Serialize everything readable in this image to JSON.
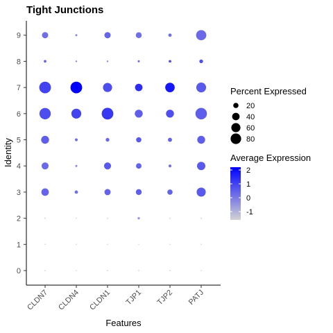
{
  "chart_data": {
    "type": "dotplot",
    "title": "Tight Junctions",
    "xlabel": "Features",
    "ylabel": "Identity",
    "features": [
      "CLDN7",
      "CLDN4",
      "CLDN1",
      "TJP1",
      "TJP2",
      "PATJ"
    ],
    "identities": [
      "0",
      "1",
      "2",
      "3",
      "4",
      "5",
      "6",
      "7",
      "8",
      "9"
    ],
    "points": [
      {
        "feature": "CLDN7",
        "identity": "0",
        "pct": 1,
        "avg": -1.6
      },
      {
        "feature": "CLDN4",
        "identity": "0",
        "pct": 1,
        "avg": -1.6
      },
      {
        "feature": "CLDN1",
        "identity": "0",
        "pct": 1,
        "avg": -1.6
      },
      {
        "feature": "TJP1",
        "identity": "0",
        "pct": 1,
        "avg": -1.6
      },
      {
        "feature": "TJP2",
        "identity": "0",
        "pct": 1,
        "avg": -1.6
      },
      {
        "feature": "PATJ",
        "identity": "0",
        "pct": 1,
        "avg": -1.6
      },
      {
        "feature": "CLDN7",
        "identity": "1",
        "pct": 1,
        "avg": -1.6
      },
      {
        "feature": "CLDN4",
        "identity": "1",
        "pct": 1,
        "avg": -1.6
      },
      {
        "feature": "CLDN1",
        "identity": "1",
        "pct": 1,
        "avg": -1.6
      },
      {
        "feature": "TJP1",
        "identity": "1",
        "pct": 1,
        "avg": -1.6
      },
      {
        "feature": "TJP2",
        "identity": "1",
        "pct": 1,
        "avg": -1.6
      },
      {
        "feature": "PATJ",
        "identity": "1",
        "pct": 1,
        "avg": -1.6
      },
      {
        "feature": "CLDN7",
        "identity": "2",
        "pct": 1,
        "avg": -1.5
      },
      {
        "feature": "CLDN4",
        "identity": "2",
        "pct": 1,
        "avg": -1.6
      },
      {
        "feature": "CLDN1",
        "identity": "2",
        "pct": 1,
        "avg": -1.5
      },
      {
        "feature": "TJP1",
        "identity": "2",
        "pct": 4,
        "avg": -0.5
      },
      {
        "feature": "TJP2",
        "identity": "2",
        "pct": 1,
        "avg": -1.5
      },
      {
        "feature": "PATJ",
        "identity": "2",
        "pct": 1,
        "avg": -1.5
      },
      {
        "feature": "CLDN7",
        "identity": "3",
        "pct": 40,
        "avg": 0.4
      },
      {
        "feature": "CLDN4",
        "identity": "3",
        "pct": 8,
        "avg": 0.2
      },
      {
        "feature": "CLDN1",
        "identity": "3",
        "pct": 28,
        "avg": 0.4
      },
      {
        "feature": "TJP1",
        "identity": "3",
        "pct": 25,
        "avg": 0.5
      },
      {
        "feature": "TJP2",
        "identity": "3",
        "pct": 20,
        "avg": 0.4
      },
      {
        "feature": "PATJ",
        "identity": "3",
        "pct": 60,
        "avg": 0.6
      },
      {
        "feature": "CLDN7",
        "identity": "4",
        "pct": 35,
        "avg": 0.3
      },
      {
        "feature": "CLDN4",
        "identity": "4",
        "pct": 3,
        "avg": -0.2
      },
      {
        "feature": "CLDN1",
        "identity": "4",
        "pct": 35,
        "avg": 0.6
      },
      {
        "feature": "TJP1",
        "identity": "4",
        "pct": 22,
        "avg": 0.4
      },
      {
        "feature": "TJP2",
        "identity": "4",
        "pct": 6,
        "avg": 0.2
      },
      {
        "feature": "PATJ",
        "identity": "4",
        "pct": 50,
        "avg": 0.6
      },
      {
        "feature": "CLDN7",
        "identity": "5",
        "pct": 45,
        "avg": 0.5
      },
      {
        "feature": "CLDN4",
        "identity": "5",
        "pct": 6,
        "avg": 0.2
      },
      {
        "feature": "CLDN1",
        "identity": "5",
        "pct": 10,
        "avg": 0.3
      },
      {
        "feature": "TJP1",
        "identity": "5",
        "pct": 20,
        "avg": 0.6
      },
      {
        "feature": "TJP2",
        "identity": "5",
        "pct": 12,
        "avg": 0.4
      },
      {
        "feature": "PATJ",
        "identity": "5",
        "pct": 45,
        "avg": 0.5
      },
      {
        "feature": "CLDN7",
        "identity": "6",
        "pct": 92,
        "avg": 0.8
      },
      {
        "feature": "CLDN4",
        "identity": "6",
        "pct": 70,
        "avg": 1.0
      },
      {
        "feature": "CLDN1",
        "identity": "6",
        "pct": 98,
        "avg": 1.2
      },
      {
        "feature": "TJP1",
        "identity": "6",
        "pct": 45,
        "avg": 0.5
      },
      {
        "feature": "TJP2",
        "identity": "6",
        "pct": 45,
        "avg": 0.8
      },
      {
        "feature": "PATJ",
        "identity": "6",
        "pct": 95,
        "avg": 0.5
      },
      {
        "feature": "CLDN7",
        "identity": "7",
        "pct": 98,
        "avg": 1.0
      },
      {
        "feature": "CLDN4",
        "identity": "7",
        "pct": 98,
        "avg": 2.2
      },
      {
        "feature": "CLDN1",
        "identity": "7",
        "pct": 60,
        "avg": 0.8
      },
      {
        "feature": "TJP1",
        "identity": "7",
        "pct": 40,
        "avg": 1.4
      },
      {
        "feature": "TJP2",
        "identity": "7",
        "pct": 65,
        "avg": 1.8
      },
      {
        "feature": "PATJ",
        "identity": "7",
        "pct": 70,
        "avg": 0.6
      },
      {
        "feature": "CLDN7",
        "identity": "8",
        "pct": 5,
        "avg": 0.4
      },
      {
        "feature": "CLDN4",
        "identity": "8",
        "pct": 2,
        "avg": -0.2
      },
      {
        "feature": "CLDN1",
        "identity": "8",
        "pct": 2,
        "avg": -0.2
      },
      {
        "feature": "TJP1",
        "identity": "8",
        "pct": 3,
        "avg": 0.3
      },
      {
        "feature": "TJP2",
        "identity": "8",
        "pct": 5,
        "avg": 0.8
      },
      {
        "feature": "PATJ",
        "identity": "8",
        "pct": 10,
        "avg": 0.8
      },
      {
        "feature": "CLDN7",
        "identity": "9",
        "pct": 28,
        "avg": 0.2
      },
      {
        "feature": "CLDN4",
        "identity": "9",
        "pct": 3,
        "avg": -0.2
      },
      {
        "feature": "CLDN1",
        "identity": "9",
        "pct": 28,
        "avg": 0.4
      },
      {
        "feature": "TJP1",
        "identity": "9",
        "pct": 25,
        "avg": 0.2
      },
      {
        "feature": "TJP2",
        "identity": "9",
        "pct": 8,
        "avg": 0.2
      },
      {
        "feature": "PATJ",
        "identity": "9",
        "pct": 75,
        "avg": 0.3
      }
    ],
    "size_legend": {
      "title": "Percent Expressed",
      "breaks": [
        20,
        40,
        60,
        80
      ]
    },
    "color_legend": {
      "title": "Average Expression",
      "breaks": [
        2,
        1,
        0,
        -1
      ],
      "range": [
        -1.6,
        2.2
      ],
      "low_color": "#D3D3D3",
      "high_color": "#0000FF"
    }
  }
}
